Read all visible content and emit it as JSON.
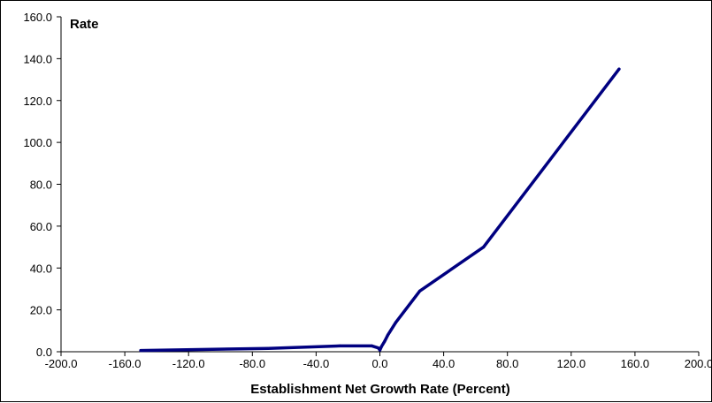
{
  "chart_data": {
    "type": "line",
    "title": "",
    "xlabel": "Establishment Net Growth Rate (Percent)",
    "ylabel": "Rate",
    "xlim": [
      -200,
      200
    ],
    "ylim": [
      0,
      160
    ],
    "xticks": [
      -200,
      -160,
      -120,
      -80,
      -40,
      0,
      40,
      80,
      120,
      160,
      200
    ],
    "yticks": [
      0,
      20,
      40,
      60,
      80,
      100,
      120,
      140,
      160
    ],
    "xtick_labels": [
      "-200.0",
      "-160.0",
      "-120.0",
      "-80.0",
      "-40.0",
      "0.0",
      "40.0",
      "80.0",
      "120.0",
      "160.0",
      "200.0"
    ],
    "ytick_labels": [
      "0.0",
      "20.0",
      "40.0",
      "60.0",
      "80.0",
      "100.0",
      "120.0",
      "140.0",
      "160.0"
    ],
    "grid": false,
    "legend": false,
    "series": [
      {
        "color": "#000080",
        "x": [
          -150,
          -70,
          -25,
          -5,
          -1,
          0,
          1,
          3,
          5,
          10,
          25,
          65,
          150
        ],
        "y": [
          0.6,
          1.6,
          2.8,
          2.8,
          1.8,
          0.8,
          2.5,
          5,
          8,
          14,
          29,
          50,
          135
        ]
      }
    ]
  }
}
